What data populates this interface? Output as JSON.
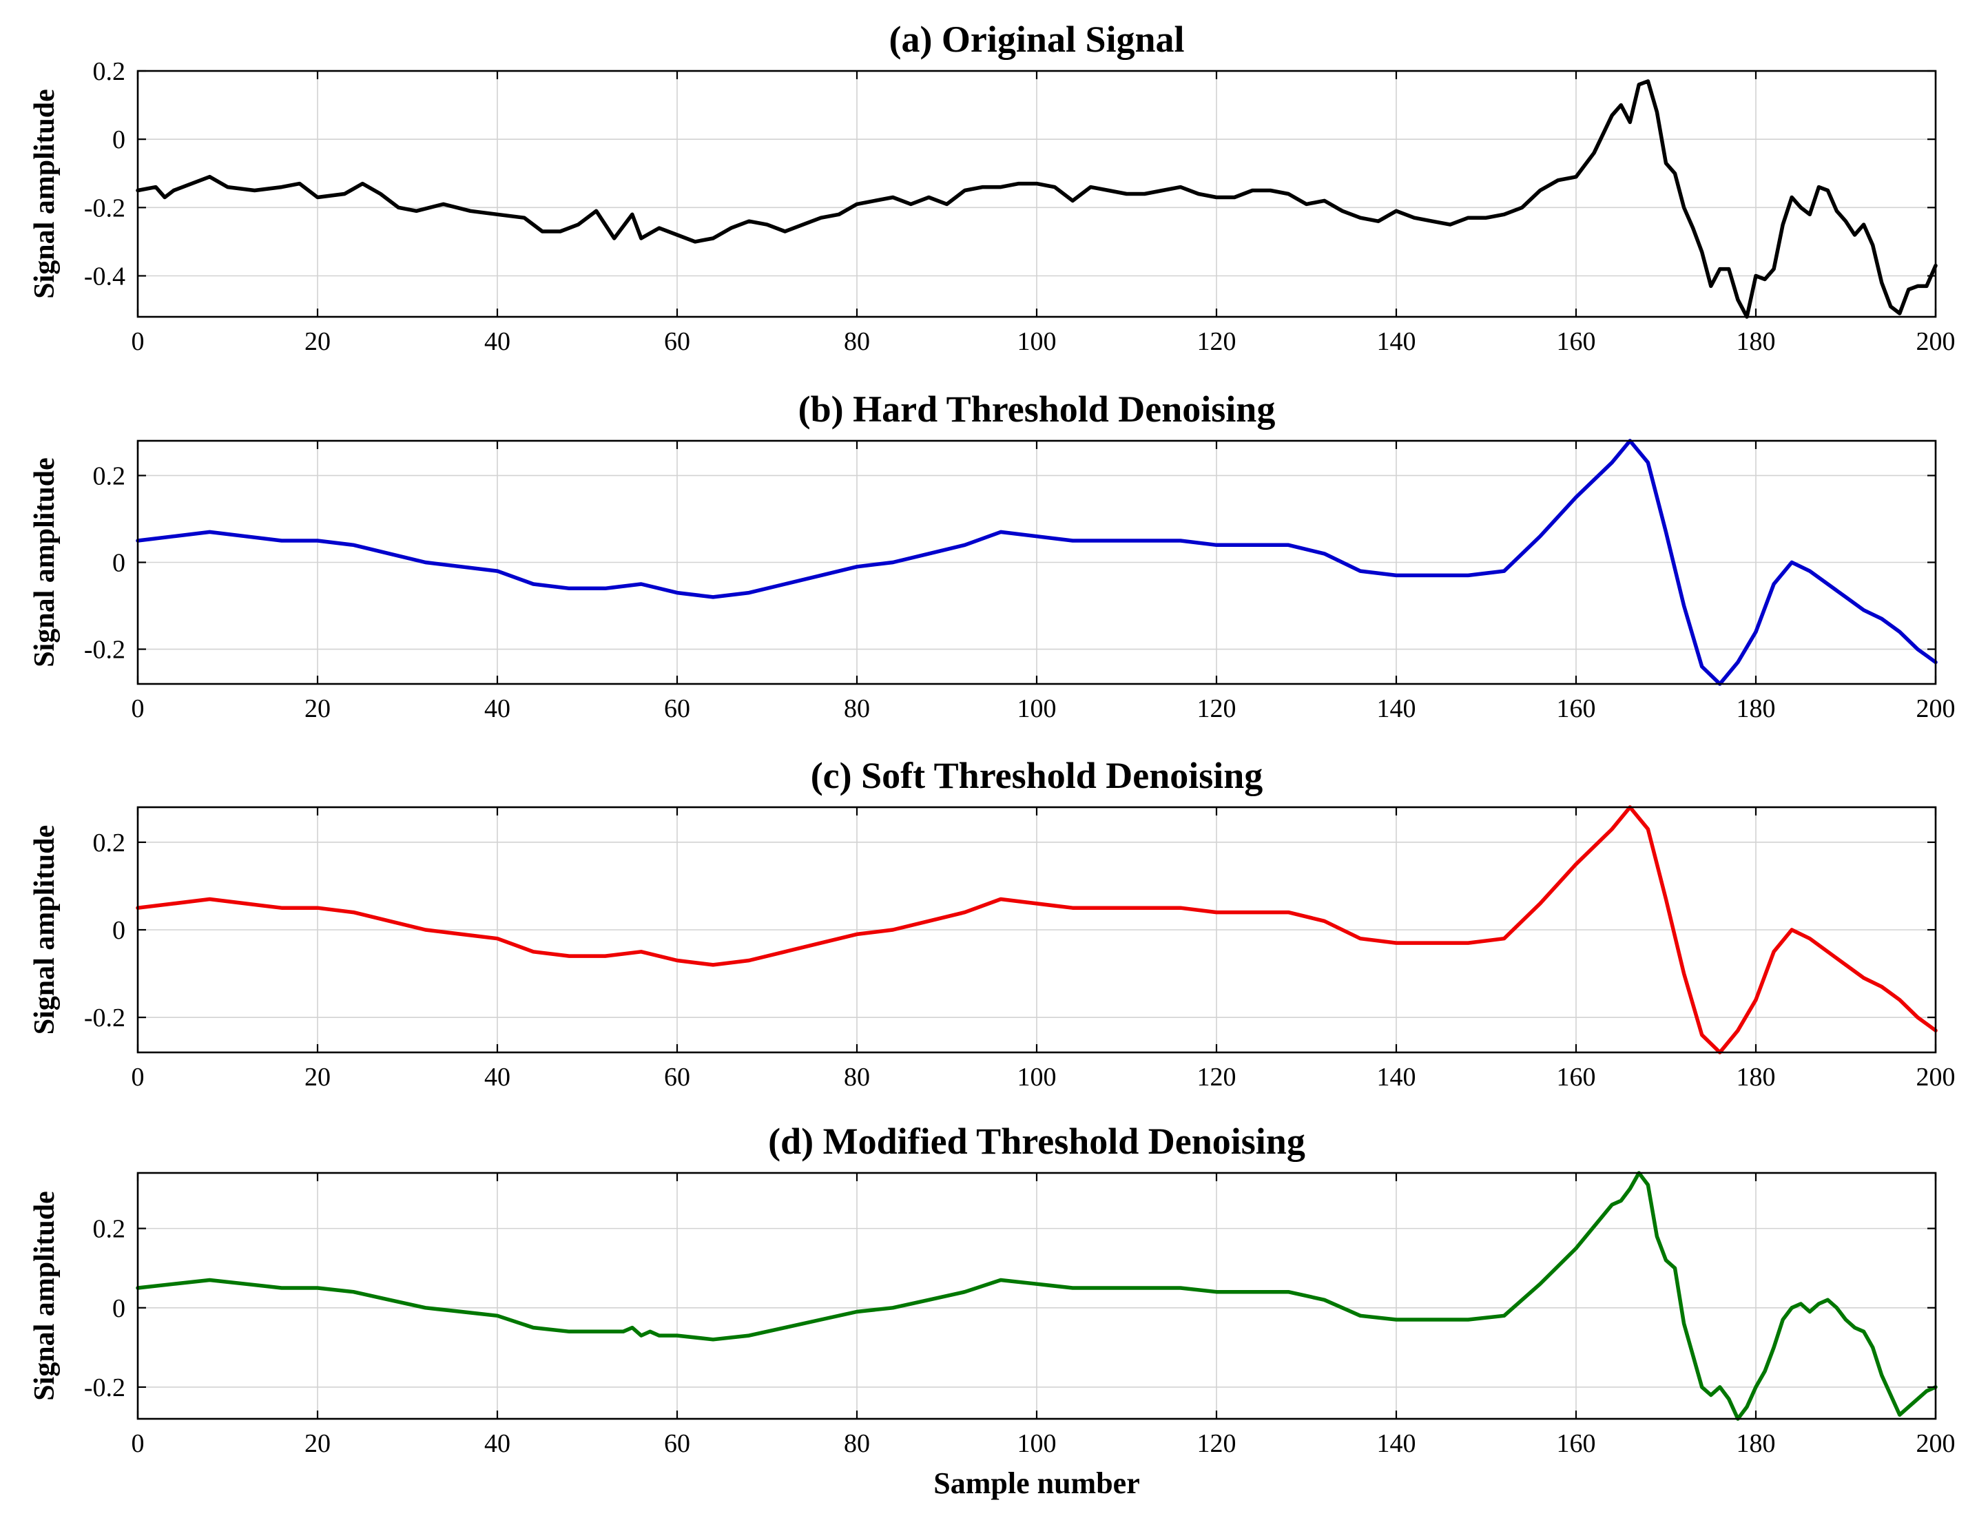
{
  "figure": {
    "xlabel": "Sample number"
  },
  "chart_data": [
    {
      "type": "line",
      "title": "(a) Original Signal",
      "ylabel": "Signal amplitude",
      "xlabel": "",
      "xlim": [
        0,
        200
      ],
      "ylim": [
        -0.52,
        0.2
      ],
      "xticks": [
        0,
        20,
        40,
        60,
        80,
        100,
        120,
        140,
        160,
        180,
        200
      ],
      "yticks": [
        0.2,
        0,
        -0.2,
        -0.4
      ],
      "ytick_labels": [
        "0.2",
        "0",
        "-0.2",
        "-0.4"
      ],
      "grid": true,
      "color": "#000000",
      "x": [
        0,
        2,
        3,
        4,
        6,
        8,
        10,
        13,
        16,
        18,
        20,
        23,
        25,
        27,
        29,
        31,
        34,
        37,
        40,
        43,
        45,
        47,
        49,
        51,
        53,
        55,
        56,
        58,
        60,
        62,
        64,
        66,
        68,
        70,
        72,
        74,
        76,
        78,
        80,
        82,
        84,
        86,
        88,
        90,
        92,
        94,
        96,
        98,
        100,
        102,
        104,
        106,
        108,
        110,
        112,
        114,
        116,
        118,
        120,
        122,
        124,
        126,
        128,
        130,
        132,
        134,
        136,
        138,
        140,
        142,
        144,
        146,
        148,
        150,
        152,
        154,
        156,
        158,
        160,
        162,
        164,
        165,
        166,
        167,
        168,
        169,
        170,
        171,
        172,
        173,
        174,
        175,
        176,
        177,
        178,
        179,
        180,
        181,
        182,
        183,
        184,
        185,
        186,
        187,
        188,
        189,
        190,
        191,
        192,
        193,
        194,
        195,
        196,
        197,
        198,
        199,
        200
      ],
      "y": [
        -0.15,
        -0.14,
        -0.17,
        -0.15,
        -0.13,
        -0.11,
        -0.14,
        -0.15,
        -0.14,
        -0.13,
        -0.17,
        -0.16,
        -0.13,
        -0.16,
        -0.2,
        -0.21,
        -0.19,
        -0.21,
        -0.22,
        -0.23,
        -0.27,
        -0.27,
        -0.25,
        -0.21,
        -0.29,
        -0.22,
        -0.29,
        -0.26,
        -0.28,
        -0.3,
        -0.29,
        -0.26,
        -0.24,
        -0.25,
        -0.27,
        -0.25,
        -0.23,
        -0.22,
        -0.19,
        -0.18,
        -0.17,
        -0.19,
        -0.17,
        -0.19,
        -0.15,
        -0.14,
        -0.14,
        -0.13,
        -0.13,
        -0.14,
        -0.18,
        -0.14,
        -0.15,
        -0.16,
        -0.16,
        -0.15,
        -0.14,
        -0.16,
        -0.17,
        -0.17,
        -0.15,
        -0.15,
        -0.16,
        -0.19,
        -0.18,
        -0.21,
        -0.23,
        -0.24,
        -0.21,
        -0.23,
        -0.24,
        -0.25,
        -0.23,
        -0.23,
        -0.22,
        -0.2,
        -0.15,
        -0.12,
        -0.11,
        -0.04,
        0.07,
        0.1,
        0.05,
        0.16,
        0.17,
        0.08,
        -0.07,
        -0.1,
        -0.2,
        -0.26,
        -0.33,
        -0.43,
        -0.38,
        -0.38,
        -0.47,
        -0.52,
        -0.4,
        -0.41,
        -0.38,
        -0.25,
        -0.17,
        -0.2,
        -0.22,
        -0.14,
        -0.15,
        -0.21,
        -0.24,
        -0.28,
        -0.25,
        -0.31,
        -0.42,
        -0.49,
        -0.51,
        -0.44,
        -0.43,
        -0.43,
        -0.37
      ]
    },
    {
      "type": "line",
      "title": "(b) Hard Threshold Denoising",
      "ylabel": "Signal amplitude",
      "xlabel": "",
      "xlim": [
        0,
        200
      ],
      "ylim": [
        -0.28,
        0.28
      ],
      "xticks": [
        0,
        20,
        40,
        60,
        80,
        100,
        120,
        140,
        160,
        180,
        200
      ],
      "yticks": [
        0.2,
        0,
        -0.2
      ],
      "ytick_labels": [
        "0.2",
        "0",
        "-0.2"
      ],
      "grid": true,
      "color": "#0000cc",
      "x": [
        0,
        4,
        8,
        12,
        16,
        20,
        24,
        28,
        32,
        36,
        40,
        44,
        48,
        52,
        56,
        60,
        64,
        68,
        72,
        76,
        80,
        84,
        88,
        92,
        96,
        100,
        104,
        108,
        112,
        116,
        120,
        124,
        128,
        132,
        136,
        140,
        144,
        148,
        152,
        156,
        160,
        164,
        166,
        168,
        170,
        172,
        174,
        176,
        178,
        180,
        182,
        184,
        186,
        188,
        190,
        192,
        194,
        196,
        198,
        200
      ],
      "y": [
        0.05,
        0.06,
        0.07,
        0.06,
        0.05,
        0.05,
        0.04,
        0.02,
        0.0,
        -0.01,
        -0.02,
        -0.05,
        -0.06,
        -0.06,
        -0.05,
        -0.07,
        -0.08,
        -0.07,
        -0.05,
        -0.03,
        -0.01,
        0.0,
        0.02,
        0.04,
        0.07,
        0.06,
        0.05,
        0.05,
        0.05,
        0.05,
        0.04,
        0.04,
        0.04,
        0.02,
        -0.02,
        -0.03,
        -0.03,
        -0.03,
        -0.02,
        0.06,
        0.15,
        0.23,
        0.28,
        0.23,
        0.07,
        -0.1,
        -0.24,
        -0.28,
        -0.23,
        -0.16,
        -0.05,
        0.0,
        -0.02,
        -0.05,
        -0.08,
        -0.11,
        -0.13,
        -0.16,
        -0.2,
        -0.23
      ]
    },
    {
      "type": "line",
      "title": "(c) Soft Threshold Denoising",
      "ylabel": "Signal amplitude",
      "xlabel": "",
      "xlim": [
        0,
        200
      ],
      "ylim": [
        -0.28,
        0.28
      ],
      "xticks": [
        0,
        20,
        40,
        60,
        80,
        100,
        120,
        140,
        160,
        180,
        200
      ],
      "yticks": [
        0.2,
        0,
        -0.2
      ],
      "ytick_labels": [
        "0.2",
        "0",
        "-0.2"
      ],
      "grid": true,
      "color": "#ee0000",
      "x": [
        0,
        4,
        8,
        12,
        16,
        20,
        24,
        28,
        32,
        36,
        40,
        44,
        48,
        52,
        56,
        60,
        64,
        68,
        72,
        76,
        80,
        84,
        88,
        92,
        96,
        100,
        104,
        108,
        112,
        116,
        120,
        124,
        128,
        132,
        136,
        140,
        144,
        148,
        152,
        156,
        160,
        164,
        166,
        168,
        170,
        172,
        174,
        176,
        178,
        180,
        182,
        184,
        186,
        188,
        190,
        192,
        194,
        196,
        198,
        200
      ],
      "y": [
        0.05,
        0.06,
        0.07,
        0.06,
        0.05,
        0.05,
        0.04,
        0.02,
        0.0,
        -0.01,
        -0.02,
        -0.05,
        -0.06,
        -0.06,
        -0.05,
        -0.07,
        -0.08,
        -0.07,
        -0.05,
        -0.03,
        -0.01,
        0.0,
        0.02,
        0.04,
        0.07,
        0.06,
        0.05,
        0.05,
        0.05,
        0.05,
        0.04,
        0.04,
        0.04,
        0.02,
        -0.02,
        -0.03,
        -0.03,
        -0.03,
        -0.02,
        0.06,
        0.15,
        0.23,
        0.28,
        0.23,
        0.07,
        -0.1,
        -0.24,
        -0.28,
        -0.23,
        -0.16,
        -0.05,
        0.0,
        -0.02,
        -0.05,
        -0.08,
        -0.11,
        -0.13,
        -0.16,
        -0.2,
        -0.23
      ]
    },
    {
      "type": "line",
      "title": "(d) Modified Threshold Denoising",
      "ylabel": "Signal amplitude",
      "xlabel": "Sample number",
      "xlim": [
        0,
        200
      ],
      "ylim": [
        -0.28,
        0.34
      ],
      "xticks": [
        0,
        20,
        40,
        60,
        80,
        100,
        120,
        140,
        160,
        180,
        200
      ],
      "yticks": [
        0.2,
        0,
        -0.2
      ],
      "ytick_labels": [
        "0.2",
        "0",
        "-0.2"
      ],
      "grid": true,
      "color": "#007700",
      "x": [
        0,
        4,
        8,
        12,
        16,
        20,
        24,
        28,
        32,
        36,
        40,
        44,
        48,
        52,
        54,
        55,
        56,
        57,
        58,
        60,
        64,
        68,
        72,
        76,
        80,
        84,
        88,
        92,
        96,
        100,
        104,
        108,
        112,
        116,
        120,
        124,
        128,
        132,
        136,
        140,
        144,
        148,
        152,
        156,
        160,
        164,
        165,
        166,
        167,
        168,
        169,
        170,
        171,
        172,
        173,
        174,
        175,
        176,
        177,
        178,
        179,
        180,
        181,
        182,
        183,
        184,
        185,
        186,
        187,
        188,
        189,
        190,
        191,
        192,
        193,
        194,
        195,
        196,
        197,
        198,
        199,
        200
      ],
      "y": [
        0.05,
        0.06,
        0.07,
        0.06,
        0.05,
        0.05,
        0.04,
        0.02,
        0.0,
        -0.01,
        -0.02,
        -0.05,
        -0.06,
        -0.06,
        -0.06,
        -0.05,
        -0.07,
        -0.06,
        -0.07,
        -0.07,
        -0.08,
        -0.07,
        -0.05,
        -0.03,
        -0.01,
        0.0,
        0.02,
        0.04,
        0.07,
        0.06,
        0.05,
        0.05,
        0.05,
        0.05,
        0.04,
        0.04,
        0.04,
        0.02,
        -0.02,
        -0.03,
        -0.03,
        -0.03,
        -0.02,
        0.06,
        0.15,
        0.26,
        0.27,
        0.3,
        0.34,
        0.31,
        0.18,
        0.12,
        0.1,
        -0.04,
        -0.12,
        -0.2,
        -0.22,
        -0.2,
        -0.23,
        -0.28,
        -0.25,
        -0.2,
        -0.16,
        -0.1,
        -0.03,
        0.0,
        0.01,
        -0.01,
        0.01,
        0.02,
        0.0,
        -0.03,
        -0.05,
        -0.06,
        -0.1,
        -0.17,
        -0.22,
        -0.27,
        -0.25,
        -0.23,
        -0.21,
        -0.2
      ]
    }
  ]
}
